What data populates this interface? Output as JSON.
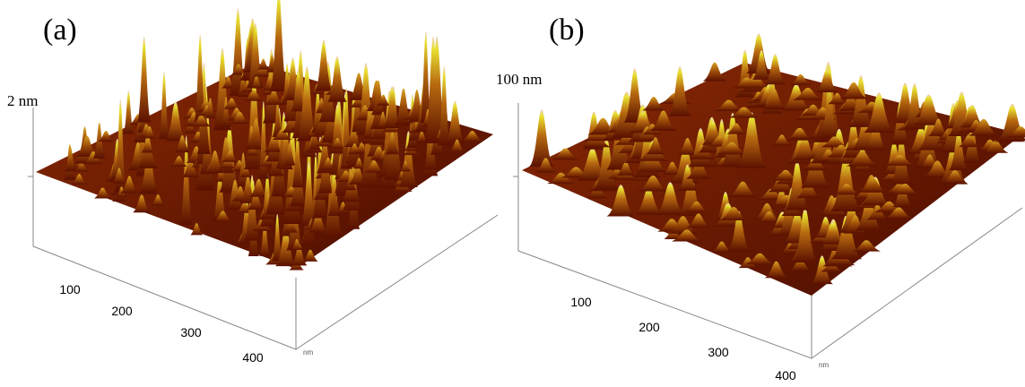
{
  "panels": [
    {
      "label": "(a)",
      "z_label": "2 nm",
      "x_ticks": [
        100,
        200,
        300,
        400
      ],
      "unit": "nm"
    },
    {
      "label": "(b)",
      "z_label": "100 nm",
      "x_ticks": [
        100,
        200,
        300,
        400
      ],
      "unit": "nm"
    }
  ]
}
